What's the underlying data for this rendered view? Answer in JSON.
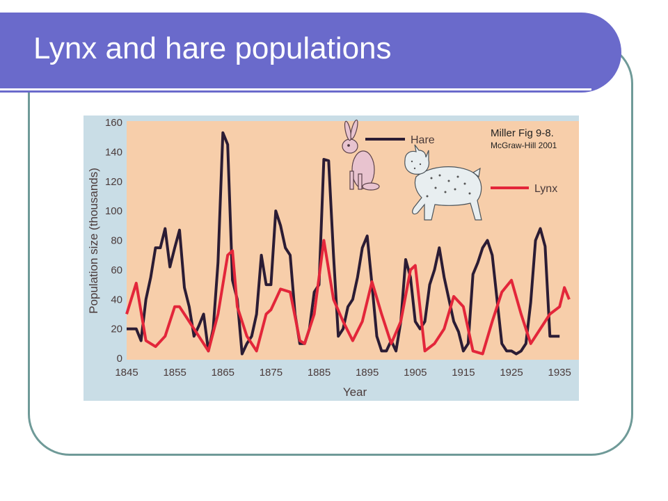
{
  "slide": {
    "title": "Lynx and hare populations"
  },
  "colors": {
    "title_bar": "#6a6acb",
    "frame_border": "#6f9a98",
    "plot_bg": "#f7ceaa",
    "panel_bg": "#c9dde6",
    "hare": "#2b1c34",
    "lynx": "#e3263a"
  },
  "chart_data": {
    "type": "line",
    "xlabel": "Year",
    "ylabel": "Population size (thousands)",
    "xlim": [
      1845,
      1937
    ],
    "ylim": [
      0,
      160
    ],
    "x_ticks": [
      1845,
      1855,
      1865,
      1875,
      1885,
      1895,
      1905,
      1915,
      1925,
      1935
    ],
    "y_ticks": [
      0,
      20,
      40,
      60,
      80,
      100,
      120,
      140,
      160
    ],
    "source_line1": "Miller Fig 9-8.",
    "source_line2": "McGraw-Hill 2001",
    "legend_position": "top-right",
    "icons": [
      "hare-illustration",
      "lynx-illustration"
    ],
    "series": [
      {
        "name": "Hare",
        "x": [
          1845,
          1846,
          1847,
          1848,
          1849,
          1850,
          1851,
          1852,
          1853,
          1854,
          1855,
          1856,
          1857,
          1858,
          1859,
          1860,
          1861,
          1862,
          1863,
          1864,
          1865,
          1866,
          1867,
          1868,
          1869,
          1870,
          1871,
          1872,
          1873,
          1874,
          1875,
          1876,
          1877,
          1878,
          1879,
          1880,
          1881,
          1882,
          1883,
          1884,
          1885,
          1886,
          1887,
          1888,
          1889,
          1890,
          1891,
          1892,
          1893,
          1894,
          1895,
          1896,
          1897,
          1898,
          1899,
          1900,
          1901,
          1902,
          1903,
          1904,
          1905,
          1906,
          1907,
          1908,
          1909,
          1910,
          1911,
          1912,
          1913,
          1914,
          1915,
          1916,
          1917,
          1918,
          1919,
          1920,
          1921,
          1922,
          1923,
          1924,
          1925,
          1926,
          1927,
          1928,
          1929,
          1930,
          1931,
          1932,
          1933,
          1934,
          1935
        ],
        "values": [
          20,
          20,
          20,
          12,
          40,
          55,
          75,
          75,
          88,
          62,
          75,
          87,
          48,
          35,
          15,
          22,
          30,
          5,
          20,
          65,
          153,
          145,
          53,
          40,
          3,
          10,
          15,
          30,
          70,
          50,
          50,
          100,
          90,
          75,
          70,
          30,
          10,
          10,
          20,
          45,
          50,
          135,
          134,
          70,
          15,
          20,
          35,
          40,
          55,
          75,
          83,
          50,
          15,
          5,
          5,
          12,
          5,
          25,
          67,
          55,
          25,
          20,
          25,
          50,
          60,
          75,
          55,
          40,
          25,
          18,
          5,
          10,
          57,
          65,
          75,
          80,
          70,
          40,
          10,
          5,
          5,
          3,
          5,
          10,
          38,
          80,
          88,
          76,
          15,
          15,
          15
        ]
      },
      {
        "name": "Lynx",
        "x": [
          1845,
          1847,
          1849,
          1851,
          1853,
          1855,
          1856,
          1858,
          1860,
          1862,
          1864,
          1866,
          1867,
          1868,
          1870,
          1872,
          1874,
          1875,
          1876,
          1877,
          1879,
          1881,
          1882,
          1884,
          1886,
          1888,
          1890,
          1892,
          1894,
          1896,
          1898,
          1900,
          1902,
          1904,
          1905,
          1907,
          1909,
          1911,
          1913,
          1915,
          1917,
          1919,
          1921,
          1923,
          1925,
          1927,
          1929,
          1931,
          1933,
          1935,
          1936,
          1937
        ],
        "values": [
          30,
          51,
          12,
          8,
          15,
          35,
          35,
          25,
          15,
          5,
          30,
          70,
          73,
          35,
          15,
          5,
          30,
          33,
          40,
          47,
          45,
          12,
          10,
          30,
          80,
          40,
          25,
          12,
          25,
          52,
          30,
          10,
          25,
          60,
          63,
          5,
          10,
          20,
          42,
          35,
          5,
          3,
          25,
          45,
          53,
          30,
          10,
          20,
          30,
          35,
          48,
          40
        ]
      }
    ]
  }
}
